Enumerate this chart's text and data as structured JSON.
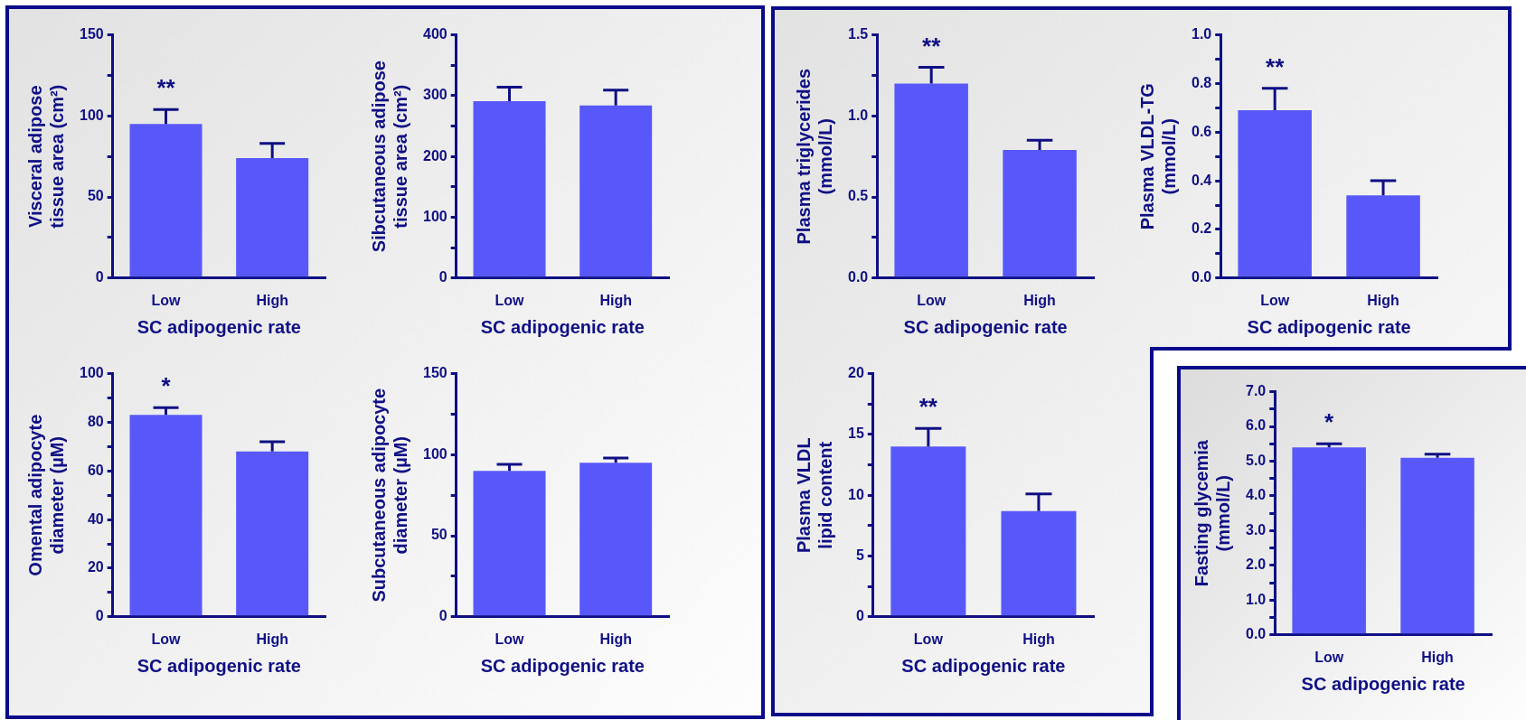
{
  "chart_data": [
    {
      "type": "bar",
      "categories": [
        "Low",
        "High"
      ],
      "xlabel": "SC adipogenic rate",
      "ylabel": "Visceral adipose\ntissue area (cm²)",
      "values": [
        95,
        74
      ],
      "errors": [
        [
          95,
          104
        ],
        [
          74,
          83
        ]
      ],
      "color": "#5858fa",
      "ylim": [
        0,
        150
      ],
      "yticks": [
        0,
        {
          "value": 25,
          "label": null
        },
        50,
        {
          "value": 75,
          "label": null
        },
        100,
        {
          "value": 125,
          "label": null
        },
        150
      ],
      "annotations": [
        "**"
      ]
    },
    {
      "type": "bar",
      "categories": [
        "Low",
        "High"
      ],
      "xlabel": "SC adipogenic rate",
      "ylabel": "Sibcutaneous adipose\ntissue area (cm²)",
      "values": [
        291,
        284
      ],
      "errors": [
        [
          291,
          314
        ],
        [
          284,
          309
        ]
      ],
      "color": "#5858fa",
      "ylim": [
        0,
        400
      ],
      "yticks": [
        0,
        {
          "value": 50,
          "label": null
        },
        100,
        {
          "value": 150,
          "label": null
        },
        200,
        {
          "value": 250,
          "label": null
        },
        300,
        {
          "value": 350,
          "label": null
        },
        400
      ]
    },
    {
      "type": "bar",
      "categories": [
        "Low",
        "High"
      ],
      "xlabel": "SC adipogenic rate",
      "ylabel": "Omental adipocyte\ndiameter (µM)",
      "values": [
        83,
        68
      ],
      "errors": [
        [
          83,
          86
        ],
        [
          68,
          72
        ]
      ],
      "color": "#5858fa",
      "ylim": [
        0,
        100
      ],
      "yticks": [
        0,
        {
          "value": 10,
          "label": null
        },
        20,
        {
          "value": 30,
          "label": null
        },
        40,
        {
          "value": 50,
          "label": null
        },
        60,
        {
          "value": 70,
          "label": null
        },
        80,
        {
          "value": 90,
          "label": null
        },
        100
      ],
      "annotations": [
        "*"
      ]
    },
    {
      "type": "bar",
      "categories": [
        "Low",
        "High"
      ],
      "xlabel": "SC adipogenic rate",
      "ylabel": "Subcutaneous adipocyte\ndiameter (µM)",
      "values": [
        90,
        95
      ],
      "errors": [
        [
          90,
          94
        ],
        [
          95,
          98
        ]
      ],
      "color": "#5858fa",
      "ylim": [
        0,
        150
      ],
      "yticks": [
        0,
        {
          "value": 25,
          "label": null
        },
        50,
        {
          "value": 75,
          "label": null
        },
        100,
        {
          "value": 125,
          "label": null
        },
        150
      ]
    },
    {
      "type": "bar",
      "categories": [
        "Low",
        "High"
      ],
      "xlabel": "SC adipogenic rate",
      "ylabel": "Plasma triglycerides\n(mmol/L)",
      "values": [
        1.2,
        0.79
      ],
      "errors": [
        [
          1.2,
          1.3
        ],
        [
          0.79,
          0.85
        ]
      ],
      "color": "#5858fa",
      "ylim": [
        0,
        1.5
      ],
      "yticks": [
        "0.0",
        {
          "value": 0.25,
          "label": null
        },
        {
          "value": 0.5,
          "label": "0.5"
        },
        {
          "value": 0.75,
          "label": null
        },
        {
          "value": 1,
          "label": "1.0"
        },
        {
          "value": 1.25,
          "label": null
        },
        {
          "value": 1.5,
          "label": "1.5"
        }
      ],
      "annotations": [
        "**"
      ]
    },
    {
      "type": "bar",
      "categories": [
        "Low",
        "High"
      ],
      "xlabel": "SC adipogenic rate",
      "ylabel": "Plasma VLDL-TG\n(mmol/L)",
      "values": [
        0.69,
        0.34
      ],
      "errors": [
        [
          0.69,
          0.78
        ],
        [
          0.34,
          0.4
        ]
      ],
      "color": "#5858fa",
      "ylim": [
        0,
        1
      ],
      "yticks": [
        {
          "value": 0,
          "label": "0.0"
        },
        {
          "value": 0.1,
          "label": null
        },
        {
          "value": 0.2,
          "label": "0.2"
        },
        {
          "value": 0.3,
          "label": null
        },
        {
          "value": 0.4,
          "label": "0.4"
        },
        {
          "value": 0.5,
          "label": null
        },
        {
          "value": 0.6,
          "label": "0.6"
        },
        {
          "value": 0.7,
          "label": null
        },
        {
          "value": 0.8,
          "label": "0.8"
        },
        {
          "value": 0.9,
          "label": null
        },
        {
          "value": 1,
          "label": "1.0"
        }
      ],
      "annotations": [
        "**"
      ]
    },
    {
      "type": "bar",
      "categories": [
        "Low",
        "High"
      ],
      "xlabel": "SC adipogenic rate",
      "ylabel": "Plasma VLDL\nlipid content",
      "values": [
        14,
        8.7
      ],
      "errors": [
        [
          14,
          15.5
        ],
        [
          8.7,
          10.1
        ]
      ],
      "color": "#5858fa",
      "ylim": [
        0,
        20
      ],
      "yticks": [
        0,
        {
          "value": 2.5,
          "label": null
        },
        5,
        {
          "value": 7.5,
          "label": null
        },
        10,
        {
          "value": 12.5,
          "label": null
        },
        15,
        {
          "value": 17.5,
          "label": null
        },
        20
      ],
      "annotations": [
        "**"
      ]
    },
    {
      "type": "bar",
      "categories": [
        "Low",
        "High"
      ],
      "xlabel": "SC adipogenic rate",
      "ylabel": "Fasting glycemia\n(mmol/L)",
      "values": [
        5.4,
        5.1
      ],
      "errors": [
        [
          5.4,
          5.5
        ],
        [
          5.1,
          5.2
        ]
      ],
      "color": "#5858fa",
      "ylim": [
        0,
        7
      ],
      "yticks": [
        {
          "value": 0,
          "label": "0.0"
        },
        {
          "value": 0.5,
          "label": null
        },
        {
          "value": 1,
          "label": "1.0"
        },
        {
          "value": 1.5,
          "label": null
        },
        {
          "value": 2,
          "label": "2.0"
        },
        {
          "value": 2.5,
          "label": null
        },
        {
          "value": 3,
          "label": "3.0"
        },
        {
          "value": 3.5,
          "label": null
        },
        {
          "value": 4,
          "label": "4.0"
        },
        {
          "value": 4.5,
          "label": null
        },
        {
          "value": 5,
          "label": "5.0"
        },
        {
          "value": 5.5,
          "label": null
        },
        {
          "value": 6,
          "label": "6.0"
        },
        {
          "value": 6.5,
          "label": null
        },
        {
          "value": 7,
          "label": "7.0"
        }
      ],
      "annotations": [
        "*"
      ]
    }
  ]
}
